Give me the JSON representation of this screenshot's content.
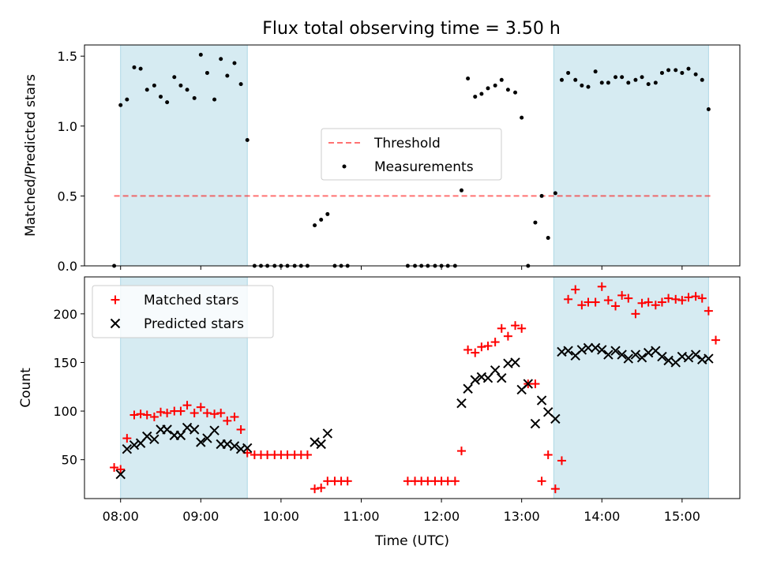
{
  "title": "Flux total observing time = 3.50 h",
  "colors": {
    "shade": "#add8e6",
    "threshold": "#ff0000",
    "measurement": "#000000",
    "matched": "#ff0000",
    "predicted": "#000000"
  },
  "chart_data": [
    {
      "type": "scatter",
      "ylabel": "Matched/Predicted stars",
      "xlim": [
        7.55,
        15.72
      ],
      "ylim": [
        0,
        1.58
      ],
      "yticks": [
        0.0,
        0.5,
        1.0,
        1.5
      ],
      "ytick_labels": [
        "0.0",
        "0.5",
        "1.0",
        "1.5"
      ],
      "shaded_intervals": [
        [
          8.0,
          9.58
        ],
        [
          13.4,
          15.33
        ]
      ],
      "legend": {
        "position": "center",
        "threshold": "Threshold",
        "measurements": "Measurements"
      },
      "threshold": {
        "value": 0.5,
        "x_range": [
          7.92,
          15.38
        ]
      },
      "series": [
        {
          "name": "Measurements",
          "points": [
            [
              7.92,
              0
            ],
            [
              8.0,
              1.15
            ],
            [
              8.08,
              1.19
            ],
            [
              8.17,
              1.42
            ],
            [
              8.25,
              1.41
            ],
            [
              8.33,
              1.26
            ],
            [
              8.42,
              1.29
            ],
            [
              8.5,
              1.21
            ],
            [
              8.58,
              1.17
            ],
            [
              8.67,
              1.35
            ],
            [
              8.75,
              1.29
            ],
            [
              8.83,
              1.26
            ],
            [
              8.92,
              1.2
            ],
            [
              9.0,
              1.51
            ],
            [
              9.08,
              1.38
            ],
            [
              9.17,
              1.19
            ],
            [
              9.25,
              1.48
            ],
            [
              9.33,
              1.36
            ],
            [
              9.42,
              1.45
            ],
            [
              9.5,
              1.3
            ],
            [
              9.58,
              0.9
            ],
            [
              9.67,
              0
            ],
            [
              9.75,
              0
            ],
            [
              9.83,
              0
            ],
            [
              9.92,
              0
            ],
            [
              10.0,
              0
            ],
            [
              10.08,
              0
            ],
            [
              10.17,
              0
            ],
            [
              10.25,
              0
            ],
            [
              10.33,
              0
            ],
            [
              10.42,
              0.29
            ],
            [
              10.5,
              0.33
            ],
            [
              10.58,
              0.37
            ],
            [
              10.67,
              0
            ],
            [
              10.75,
              0
            ],
            [
              10.83,
              0
            ],
            [
              11.58,
              0
            ],
            [
              11.67,
              0
            ],
            [
              11.75,
              0
            ],
            [
              11.83,
              0
            ],
            [
              11.92,
              0
            ],
            [
              12.0,
              0
            ],
            [
              12.08,
              0
            ],
            [
              12.17,
              0
            ],
            [
              12.25,
              0.54
            ],
            [
              12.33,
              1.34
            ],
            [
              12.42,
              1.21
            ],
            [
              12.5,
              1.23
            ],
            [
              12.58,
              1.27
            ],
            [
              12.67,
              1.29
            ],
            [
              12.75,
              1.33
            ],
            [
              12.83,
              1.26
            ],
            [
              12.92,
              1.24
            ],
            [
              13.0,
              1.06
            ],
            [
              13.08,
              0
            ],
            [
              13.17,
              0.31
            ],
            [
              13.25,
              0.5
            ],
            [
              13.33,
              0.2
            ],
            [
              13.42,
              0.52
            ],
            [
              13.5,
              1.33
            ],
            [
              13.58,
              1.38
            ],
            [
              13.67,
              1.33
            ],
            [
              13.75,
              1.29
            ],
            [
              13.83,
              1.28
            ],
            [
              13.92,
              1.39
            ],
            [
              14.0,
              1.31
            ],
            [
              14.08,
              1.31
            ],
            [
              14.17,
              1.35
            ],
            [
              14.25,
              1.35
            ],
            [
              14.33,
              1.31
            ],
            [
              14.42,
              1.33
            ],
            [
              14.5,
              1.35
            ],
            [
              14.58,
              1.3
            ],
            [
              14.67,
              1.31
            ],
            [
              14.75,
              1.38
            ],
            [
              14.83,
              1.4
            ],
            [
              14.92,
              1.4
            ],
            [
              15.0,
              1.38
            ],
            [
              15.08,
              1.41
            ],
            [
              15.17,
              1.37
            ],
            [
              15.25,
              1.33
            ],
            [
              15.33,
              1.12
            ]
          ]
        }
      ]
    },
    {
      "type": "scatter",
      "ylabel": "Count",
      "xlabel": "Time (UTC)",
      "xlim": [
        7.55,
        15.72
      ],
      "ylim": [
        10,
        238
      ],
      "yticks": [
        50,
        100,
        150,
        200
      ],
      "ytick_labels": [
        "50",
        "100",
        "150",
        "200"
      ],
      "xticks": [
        8,
        9,
        10,
        11,
        12,
        13,
        14,
        15
      ],
      "xtick_labels": [
        "08:00",
        "09:00",
        "10:00",
        "11:00",
        "12:00",
        "13:00",
        "14:00",
        "15:00"
      ],
      "shaded_intervals": [
        [
          8.0,
          9.58
        ],
        [
          13.4,
          15.33
        ]
      ],
      "legend": {
        "position": "upper left"
      },
      "series": [
        {
          "name": "Matched stars",
          "marker": "plus",
          "points": [
            [
              7.92,
              42
            ],
            [
              8.0,
              40
            ],
            [
              8.08,
              72
            ],
            [
              8.17,
              96
            ],
            [
              8.25,
              97
            ],
            [
              8.33,
              96
            ],
            [
              8.42,
              94
            ],
            [
              8.5,
              99
            ],
            [
              8.58,
              98
            ],
            [
              8.67,
              100
            ],
            [
              8.75,
              100
            ],
            [
              8.83,
              106
            ],
            [
              8.92,
              98
            ],
            [
              9.0,
              104
            ],
            [
              9.08,
              98
            ],
            [
              9.17,
              97
            ],
            [
              9.25,
              98
            ],
            [
              9.33,
              90
            ],
            [
              9.42,
              94
            ],
            [
              9.5,
              81
            ],
            [
              9.58,
              57
            ],
            [
              9.67,
              55
            ],
            [
              9.75,
              55
            ],
            [
              9.83,
              55
            ],
            [
              9.92,
              55
            ],
            [
              10.0,
              55
            ],
            [
              10.08,
              55
            ],
            [
              10.17,
              55
            ],
            [
              10.25,
              55
            ],
            [
              10.33,
              55
            ],
            [
              10.42,
              20
            ],
            [
              10.5,
              21
            ],
            [
              10.58,
              28
            ],
            [
              10.67,
              28
            ],
            [
              10.75,
              28
            ],
            [
              10.83,
              28
            ],
            [
              11.58,
              28
            ],
            [
              11.67,
              28
            ],
            [
              11.75,
              28
            ],
            [
              11.83,
              28
            ],
            [
              11.92,
              28
            ],
            [
              12.0,
              28
            ],
            [
              12.08,
              28
            ],
            [
              12.17,
              28
            ],
            [
              12.25,
              59
            ],
            [
              12.33,
              163
            ],
            [
              12.42,
              160
            ],
            [
              12.5,
              166
            ],
            [
              12.58,
              167
            ],
            [
              12.67,
              171
            ],
            [
              12.75,
              185
            ],
            [
              12.83,
              177
            ],
            [
              12.92,
              188
            ],
            [
              13.0,
              185
            ],
            [
              13.08,
              128
            ],
            [
              13.17,
              128
            ],
            [
              13.25,
              28
            ],
            [
              13.33,
              55
            ],
            [
              13.42,
              20
            ],
            [
              13.5,
              49
            ],
            [
              13.58,
              215
            ],
            [
              13.67,
              225
            ],
            [
              13.75,
              209
            ],
            [
              13.83,
              212
            ],
            [
              13.92,
              212
            ],
            [
              14.0,
              228
            ],
            [
              14.08,
              214
            ],
            [
              14.17,
              208
            ],
            [
              14.25,
              219
            ],
            [
              14.33,
              216
            ],
            [
              14.42,
              200
            ],
            [
              14.5,
              211
            ],
            [
              14.58,
              212
            ],
            [
              14.67,
              209
            ],
            [
              14.75,
              212
            ],
            [
              14.83,
              216
            ],
            [
              14.92,
              215
            ],
            [
              15.0,
              214
            ],
            [
              15.08,
              217
            ],
            [
              15.17,
              218
            ],
            [
              15.25,
              216
            ],
            [
              15.33,
              203
            ],
            [
              15.42,
              173
            ]
          ]
        },
        {
          "name": "Predicted stars",
          "marker": "x",
          "points": [
            [
              8.0,
              35
            ],
            [
              8.08,
              61
            ],
            [
              8.17,
              65
            ],
            [
              8.25,
              67
            ],
            [
              8.33,
              74
            ],
            [
              8.42,
              71
            ],
            [
              8.5,
              81
            ],
            [
              8.58,
              81
            ],
            [
              8.67,
              75
            ],
            [
              8.75,
              75
            ],
            [
              8.83,
              83
            ],
            [
              8.92,
              81
            ],
            [
              9.0,
              68
            ],
            [
              9.08,
              72
            ],
            [
              9.17,
              80
            ],
            [
              9.25,
              66
            ],
            [
              9.33,
              66
            ],
            [
              9.42,
              64
            ],
            [
              9.5,
              61
            ],
            [
              9.58,
              62
            ],
            [
              10.42,
              68
            ],
            [
              10.5,
              66
            ],
            [
              10.58,
              77
            ],
            [
              12.25,
              108
            ],
            [
              12.33,
              123
            ],
            [
              12.42,
              132
            ],
            [
              12.5,
              135
            ],
            [
              12.58,
              134
            ],
            [
              12.67,
              142
            ],
            [
              12.75,
              134
            ],
            [
              12.83,
              149
            ],
            [
              12.92,
              150
            ],
            [
              13.0,
              122
            ],
            [
              13.08,
              128
            ],
            [
              13.17,
              87
            ],
            [
              13.25,
              111
            ],
            [
              13.33,
              99
            ],
            [
              13.42,
              92
            ],
            [
              13.5,
              161
            ],
            [
              13.58,
              162
            ],
            [
              13.67,
              157
            ],
            [
              13.75,
              163
            ],
            [
              13.83,
              165
            ],
            [
              13.92,
              165
            ],
            [
              14.0,
              163
            ],
            [
              14.08,
              158
            ],
            [
              14.17,
              162
            ],
            [
              14.25,
              158
            ],
            [
              14.33,
              154
            ],
            [
              14.42,
              158
            ],
            [
              14.5,
              155
            ],
            [
              14.58,
              160
            ],
            [
              14.67,
              162
            ],
            [
              14.75,
              156
            ],
            [
              14.83,
              152
            ],
            [
              14.92,
              150
            ],
            [
              15.0,
              156
            ],
            [
              15.08,
              155
            ],
            [
              15.17,
              158
            ],
            [
              15.25,
              153
            ],
            [
              15.33,
              154
            ]
          ]
        }
      ]
    }
  ]
}
